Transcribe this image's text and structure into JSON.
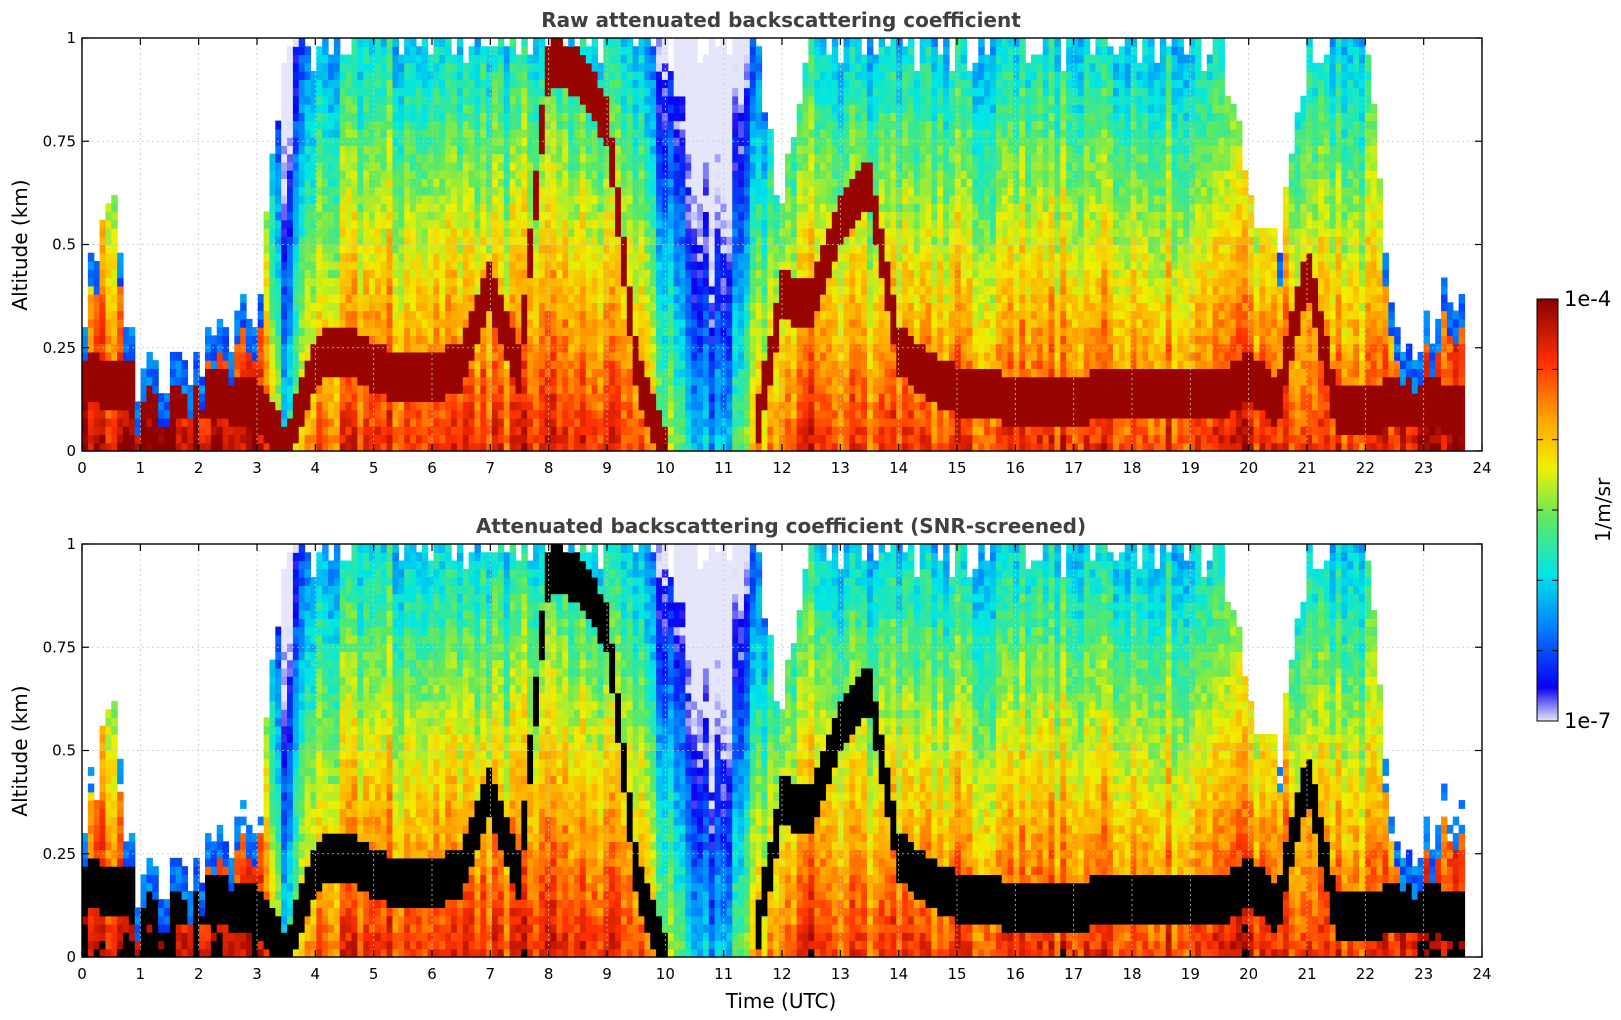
{
  "chart_data": [
    {
      "type": "heatmap",
      "title": "Raw attenuated backscattering coefficient",
      "xlabel": "",
      "ylabel": "Altitude (km)",
      "xlim": [
        0,
        24
      ],
      "ylim": [
        0,
        1
      ],
      "x_ticks": [
        "0",
        "1",
        "2",
        "3",
        "4",
        "5",
        "6",
        "7",
        "8",
        "9",
        "10",
        "11",
        "12",
        "13",
        "14",
        "15",
        "16",
        "17",
        "18",
        "19",
        "20",
        "21",
        "22",
        "23",
        "24"
      ],
      "y_ticks": [
        "0",
        "0.25",
        "0.5",
        "0.75",
        "1"
      ],
      "grid": true,
      "z_scale": "log",
      "z_range": [
        1e-07,
        0.0001
      ],
      "columns": [
        {
          "t": 0.0,
          "top": 0.35,
          "base": -4.1,
          "cloud": 0.19
        },
        {
          "t": 0.5,
          "top": 0.6,
          "base": -4.3,
          "cloud": 0.16
        },
        {
          "t": 1.0,
          "top": 0.15,
          "base": -4.0,
          "cloud": 0.15
        },
        {
          "t": 1.5,
          "top": 0.18,
          "base": -4.0,
          "cloud": 0.14
        },
        {
          "t": 2.0,
          "top": 0.18,
          "base": -4.1,
          "cloud": 0.14
        },
        {
          "t": 2.5,
          "top": 0.3,
          "base": -4.2,
          "cloud": 0.13
        },
        {
          "t": 3.0,
          "top": 0.32,
          "base": -4.0,
          "cloud": 0.12
        },
        {
          "t": 3.5,
          "top": 1.0,
          "base": -5.8,
          "cloud": 0.0
        },
        {
          "t": 4.0,
          "top": 1.0,
          "base": -4.6,
          "cloud": 0.22
        },
        {
          "t": 4.5,
          "top": 1.0,
          "base": -4.5,
          "cloud": 0.25
        },
        {
          "t": 5.0,
          "top": 1.0,
          "base": -4.4,
          "cloud": 0.2
        },
        {
          "t": 5.5,
          "top": 1.0,
          "base": -4.4,
          "cloud": 0.18
        },
        {
          "t": 6.0,
          "top": 1.0,
          "base": -4.3,
          "cloud": 0.18
        },
        {
          "t": 6.5,
          "top": 1.0,
          "base": -4.5,
          "cloud": 0.2
        },
        {
          "t": 7.0,
          "top": 1.0,
          "base": -4.5,
          "cloud": 0.4
        },
        {
          "t": 7.5,
          "top": 1.0,
          "base": -4.4,
          "cloud": 0.2
        },
        {
          "t": 8.0,
          "top": 1.0,
          "base": -4.3,
          "cloud": 0.95
        },
        {
          "t": 8.5,
          "top": 1.0,
          "base": -4.3,
          "cloud": 0.92
        },
        {
          "t": 9.0,
          "top": 1.0,
          "base": -4.4,
          "cloud": 0.8
        },
        {
          "t": 9.5,
          "top": 1.0,
          "base": -4.5,
          "cloud": 0.2
        },
        {
          "t": 10.0,
          "top": 1.0,
          "base": -5.3,
          "cloud": 0.0
        },
        {
          "t": 10.5,
          "top": 1.0,
          "base": -6.0,
          "cloud": 0.0
        },
        {
          "t": 11.0,
          "top": 1.0,
          "base": -6.1,
          "cloud": 0.0
        },
        {
          "t": 11.5,
          "top": 1.0,
          "base": -5.0,
          "cloud": 0.0
        },
        {
          "t": 12.0,
          "top": 0.6,
          "base": -4.6,
          "cloud": 0.38
        },
        {
          "t": 12.5,
          "top": 1.0,
          "base": -4.3,
          "cloud": 0.35
        },
        {
          "t": 13.0,
          "top": 1.0,
          "base": -4.4,
          "cloud": 0.55
        },
        {
          "t": 13.5,
          "top": 1.0,
          "base": -4.6,
          "cloud": 0.65
        },
        {
          "t": 14.0,
          "top": 1.0,
          "base": -4.5,
          "cloud": 0.25
        },
        {
          "t": 14.5,
          "top": 1.0,
          "base": -4.4,
          "cloud": 0.18
        },
        {
          "t": 15.0,
          "top": 1.0,
          "base": -4.4,
          "cloud": 0.15
        },
        {
          "t": 15.5,
          "top": 1.0,
          "base": -4.5,
          "cloud": 0.14
        },
        {
          "t": 16.0,
          "top": 1.0,
          "base": -4.4,
          "cloud": 0.12
        },
        {
          "t": 16.5,
          "top": 1.0,
          "base": -4.5,
          "cloud": 0.13
        },
        {
          "t": 17.0,
          "top": 1.0,
          "base": -4.4,
          "cloud": 0.12
        },
        {
          "t": 17.5,
          "top": 1.0,
          "base": -4.4,
          "cloud": 0.14
        },
        {
          "t": 18.0,
          "top": 1.0,
          "base": -4.4,
          "cloud": 0.15
        },
        {
          "t": 18.5,
          "top": 1.0,
          "base": -4.5,
          "cloud": 0.14
        },
        {
          "t": 19.0,
          "top": 1.0,
          "base": -4.4,
          "cloud": 0.15
        },
        {
          "t": 19.5,
          "top": 1.0,
          "base": -4.5,
          "cloud": 0.13
        },
        {
          "t": 20.0,
          "top": 0.6,
          "base": -4.3,
          "cloud": 0.18
        },
        {
          "t": 20.5,
          "top": 0.5,
          "base": -4.4,
          "cloud": 0.12
        },
        {
          "t": 21.0,
          "top": 1.0,
          "base": -4.4,
          "cloud": 0.45
        },
        {
          "t": 21.5,
          "top": 1.0,
          "base": -4.5,
          "cloud": 0.1
        },
        {
          "t": 22.0,
          "top": 1.0,
          "base": -4.5,
          "cloud": 0.09
        },
        {
          "t": 22.5,
          "top": 0.3,
          "base": -4.3,
          "cloud": 0.13
        },
        {
          "t": 23.0,
          "top": 0.3,
          "base": -4.1,
          "cloud": 0.12
        },
        {
          "t": 23.5,
          "top": 0.4,
          "base": -4.1,
          "cloud": 0.1
        },
        {
          "t": 23.7,
          "top": 0.4,
          "base": -4.2,
          "cloud": 0.1
        }
      ]
    },
    {
      "type": "heatmap",
      "title": "Attenuated backscattering coefficient (SNR-screened)",
      "xlabel": "Time (UTC)",
      "ylabel": "Altitude (km)",
      "xlim": [
        0,
        24
      ],
      "ylim": [
        0,
        1
      ],
      "x_ticks": [
        "0",
        "1",
        "2",
        "3",
        "4",
        "5",
        "6",
        "7",
        "8",
        "9",
        "10",
        "11",
        "12",
        "13",
        "14",
        "15",
        "16",
        "17",
        "18",
        "19",
        "20",
        "21",
        "22",
        "23",
        "24"
      ],
      "y_ticks": [
        "0",
        "0.25",
        "0.5",
        "0.75",
        "1"
      ],
      "grid": true,
      "z_scale": "log",
      "z_range": [
        1e-07,
        0.0001
      ],
      "screened_black": true
    }
  ],
  "colorbar": {
    "label": "1/m/sr",
    "max_label": "1e-4",
    "min_label": "1e-7"
  }
}
